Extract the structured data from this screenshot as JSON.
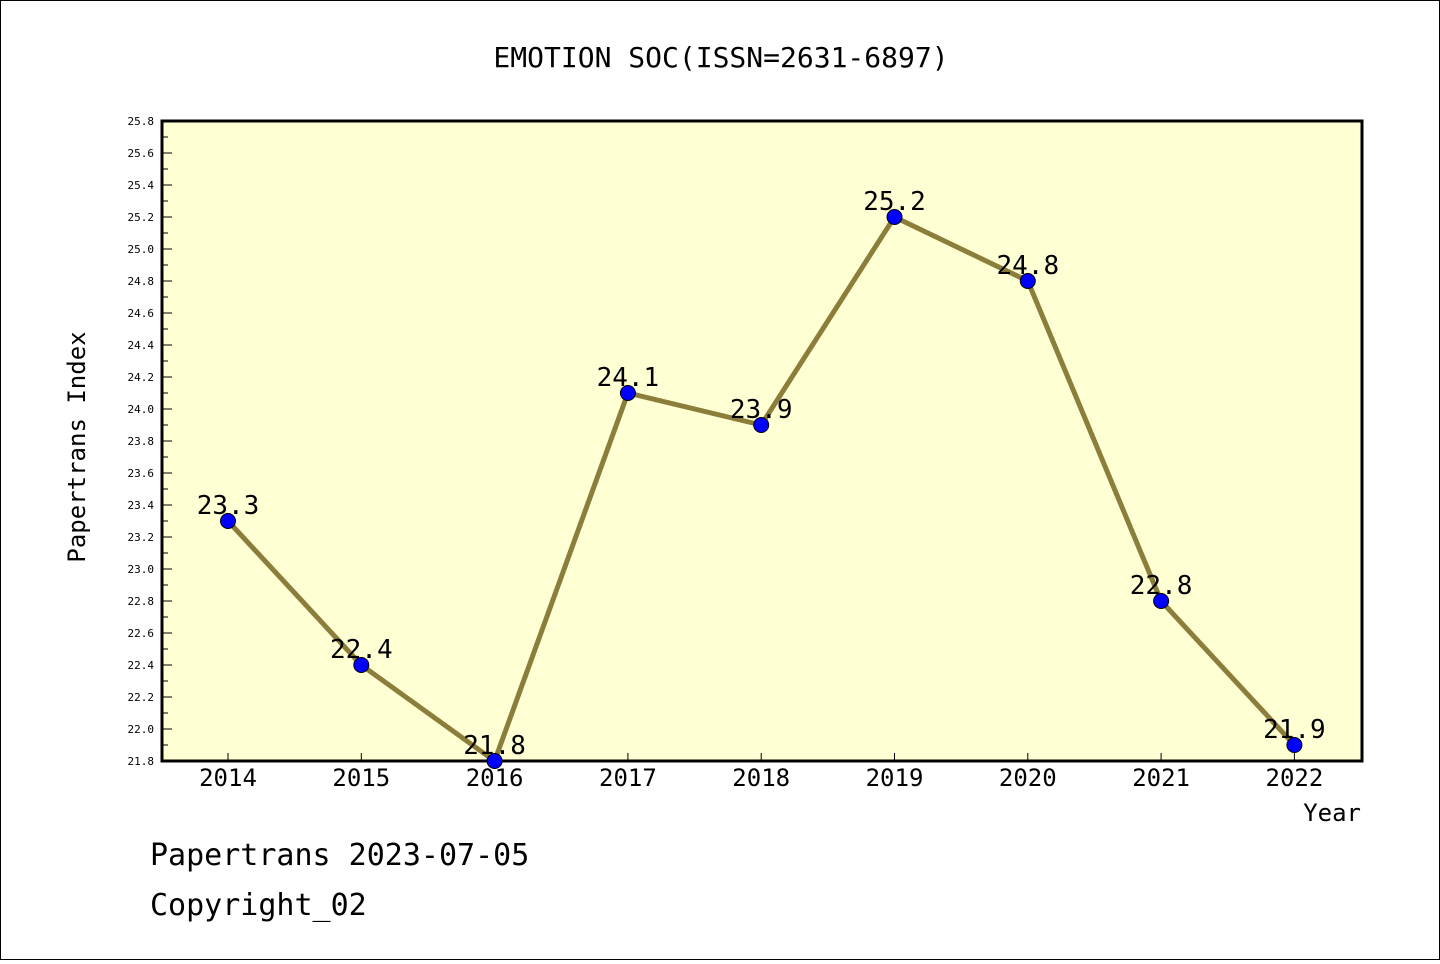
{
  "footer": {
    "line1": "Papertrans 2023-07-05",
    "line2": "Copyright_02"
  },
  "chart_data": {
    "type": "line",
    "title": "EMOTION SOC(ISSN=2631-6897)",
    "xlabel": "Year",
    "ylabel": "Papertrans Index",
    "categories": [
      "2014",
      "2015",
      "2016",
      "2017",
      "2018",
      "2019",
      "2020",
      "2021",
      "2022"
    ],
    "series": [
      {
        "values": [
          23.3,
          22.4,
          21.8,
          24.1,
          23.9,
          25.2,
          24.8,
          22.8,
          21.9
        ]
      }
    ],
    "data_labels": [
      "23.3",
      "22.4",
      "21.8",
      "24.1",
      "23.9",
      "25.2",
      "24.8",
      "22.8",
      "21.9"
    ],
    "ylim": [
      21.8,
      25.8
    ],
    "yticks": [
      "21.8",
      "22.0",
      "22.2",
      "22.4",
      "22.6",
      "22.8",
      "23.0",
      "23.2",
      "23.4",
      "23.6",
      "23.8",
      "24.0",
      "24.2",
      "24.4",
      "24.6",
      "24.8",
      "25.0",
      "25.2",
      "25.4",
      "25.6",
      "25.8"
    ],
    "grid": false,
    "colors": {
      "plot_background": "#ffffd4",
      "line": "#8b7d3a",
      "marker": "#0000ff"
    }
  }
}
